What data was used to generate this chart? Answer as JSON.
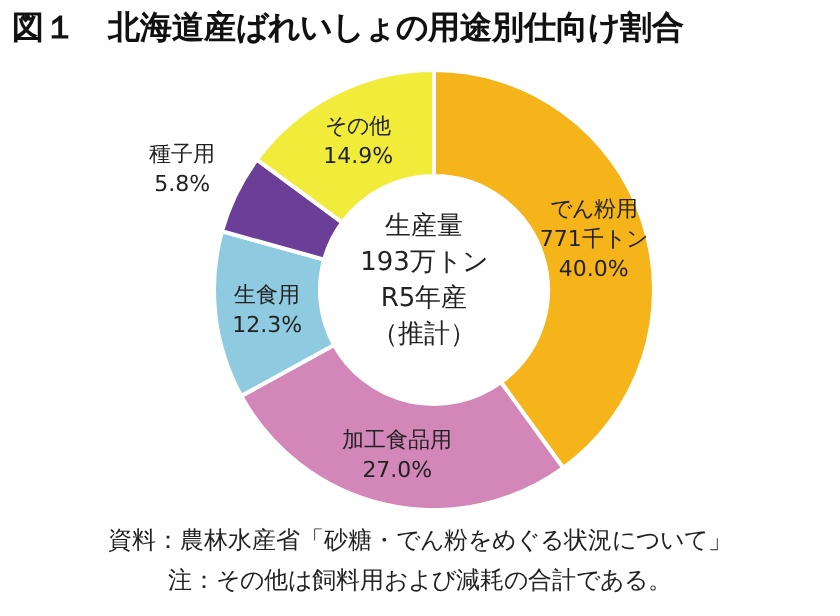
{
  "chart_data": {
    "type": "donut",
    "title": "図１　北海道産ばれいしょの用途別仕向け割合",
    "categories": [
      "でん粉用",
      "加工食品用",
      "生食用",
      "種子用",
      "その他"
    ],
    "values": [
      40.0,
      27.0,
      12.3,
      5.8,
      14.9
    ],
    "colors": [
      "#f4b41a",
      "#d386b8",
      "#8ecbe0",
      "#6b3f98",
      "#f1eb3a"
    ],
    "value_labels": [
      "40.0%",
      "27.0%",
      "12.3%",
      "5.8%",
      "14.9%"
    ],
    "legend": false,
    "annotations": [
      {
        "text": "771千トン",
        "x": "でん粉用"
      },
      "生産量",
      "193万トン",
      "R5年産",
      "（推計）",
      "資料：農林水産省「砂糖・でん粉をめぐる状況について」",
      "注：その他は飼料用および減耗の合計である。"
    ]
  }
}
